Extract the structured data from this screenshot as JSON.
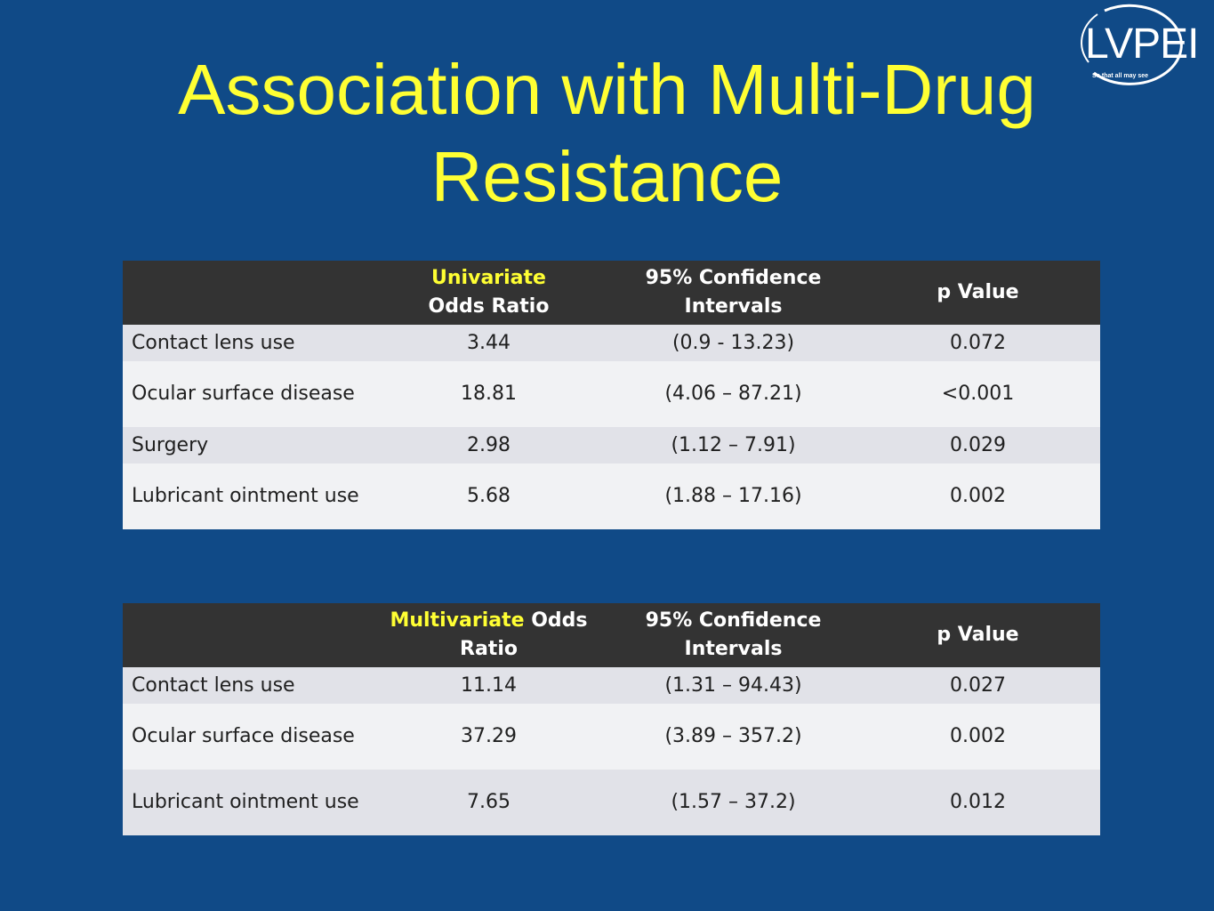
{
  "slide": {
    "title_line1": "Association with Multi-Drug",
    "title_line2": "Resistance"
  },
  "logo": {
    "text": "LVPEI",
    "tagline": "So that all may see"
  },
  "univariate_table": {
    "header": {
      "col0": "",
      "col1_highlight": "Univariate",
      "col1_rest": "Odds Ratio",
      "col2": "95% Confidence Intervals",
      "col3": "p Value"
    },
    "rows": [
      {
        "factor": "Contact lens use",
        "odds_ratio": "3.44",
        "ci": "(0.9 - 13.23)",
        "p": "0.072"
      },
      {
        "factor": "Ocular surface disease",
        "odds_ratio": "18.81",
        "ci": "(4.06 – 87.21)",
        "p": "<0.001"
      },
      {
        "factor": "Surgery",
        "odds_ratio": "2.98",
        "ci": "(1.12 – 7.91)",
        "p": "0.029"
      },
      {
        "factor": "Lubricant ointment use",
        "odds_ratio": "5.68",
        "ci": "(1.88 – 17.16)",
        "p": "0.002"
      }
    ]
  },
  "multivariate_table": {
    "header": {
      "col0": "",
      "col1_highlight": "Multivariate",
      "col1_rest": "Odds Ratio",
      "col2": "95% Confidence Intervals",
      "col3": "p Value"
    },
    "rows": [
      {
        "factor": "Contact lens use",
        "odds_ratio": "11.14",
        "ci": "(1.31 – 94.43)",
        "p": "0.027"
      },
      {
        "factor": "Ocular surface disease",
        "odds_ratio": "37.29",
        "ci": "(3.89 – 357.2)",
        "p": "0.002"
      },
      {
        "factor": "Lubricant ointment use",
        "odds_ratio": "7.65",
        "ci": "(1.57 – 37.2)",
        "p": "0.012"
      }
    ]
  },
  "colors": {
    "background": "#104a87",
    "title": "#ffff33",
    "header_bg": "#333333",
    "row_odd": "#e1e2e8",
    "row_even": "#f1f2f4"
  }
}
